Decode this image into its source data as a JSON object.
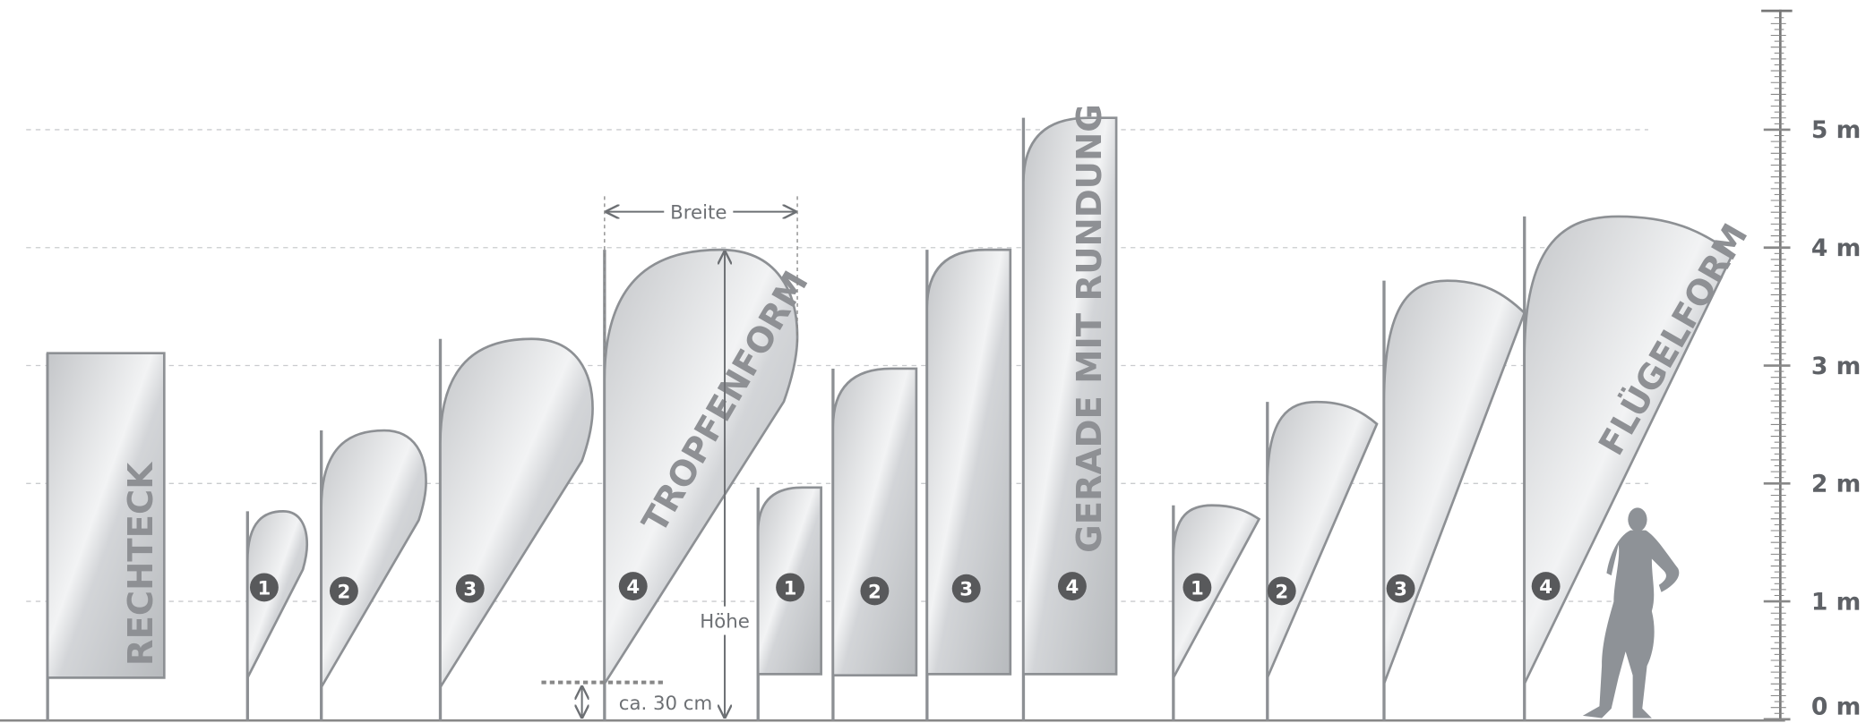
{
  "scale": {
    "labels": [
      "0 m",
      "1 m",
      "2 m",
      "3 m",
      "4 m",
      "5 m"
    ]
  },
  "flags": [
    {
      "label": "RECHTECK"
    },
    {
      "label": "TROPFENFORM",
      "sizes": [
        "1",
        "2",
        "3",
        "4"
      ]
    },
    {
      "label": "GERADE MIT RUNDUNG",
      "sizes": [
        "1",
        "2",
        "3",
        "4"
      ]
    },
    {
      "label": "FLÜGELFORM",
      "sizes": [
        "1",
        "2",
        "3",
        "4"
      ]
    }
  ],
  "dimensions": {
    "width": "Breite",
    "height": "Höhe",
    "offset": "ca. 30 cm"
  }
}
